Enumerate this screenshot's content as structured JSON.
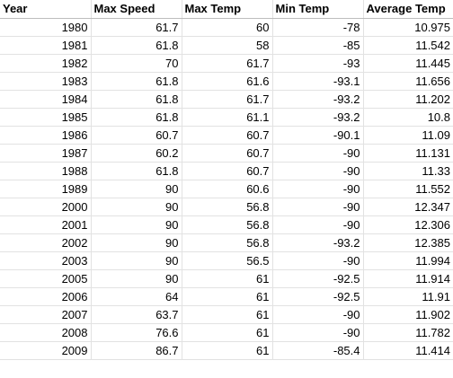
{
  "sheet": {
    "columns": [
      "Year",
      "Max Speed",
      "Max Temp",
      "Min Temp",
      "Average Temp"
    ],
    "rows": [
      [
        "1980",
        "61.7",
        "60",
        "-78",
        "10.975"
      ],
      [
        "1981",
        "61.8",
        "58",
        "-85",
        "11.542"
      ],
      [
        "1982",
        "70",
        "61.7",
        "-93",
        "11.445"
      ],
      [
        "1983",
        "61.8",
        "61.6",
        "-93.1",
        "11.656"
      ],
      [
        "1984",
        "61.8",
        "61.7",
        "-93.2",
        "11.202"
      ],
      [
        "1985",
        "61.8",
        "61.1",
        "-93.2",
        "10.8"
      ],
      [
        "1986",
        "60.7",
        "60.7",
        "-90.1",
        "11.09"
      ],
      [
        "1987",
        "60.2",
        "60.7",
        "-90",
        "11.131"
      ],
      [
        "1988",
        "61.8",
        "60.7",
        "-90",
        "11.33"
      ],
      [
        "1989",
        "90",
        "60.6",
        "-90",
        "11.552"
      ],
      [
        "2000",
        "90",
        "56.8",
        "-90",
        "12.347"
      ],
      [
        "2001",
        "90",
        "56.8",
        "-90",
        "12.306"
      ],
      [
        "2002",
        "90",
        "56.8",
        "-93.2",
        "12.385"
      ],
      [
        "2003",
        "90",
        "56.5",
        "-90",
        "11.994"
      ],
      [
        "2005",
        "90",
        "61",
        "-92.5",
        "11.914"
      ],
      [
        "2006",
        "64",
        "61",
        "-92.5",
        "11.91"
      ],
      [
        "2007",
        "63.7",
        "61",
        "-90",
        "11.902"
      ],
      [
        "2008",
        "76.6",
        "61",
        "-90",
        "11.782"
      ],
      [
        "2009",
        "86.7",
        "61",
        "-85.4",
        "11.414"
      ]
    ]
  }
}
